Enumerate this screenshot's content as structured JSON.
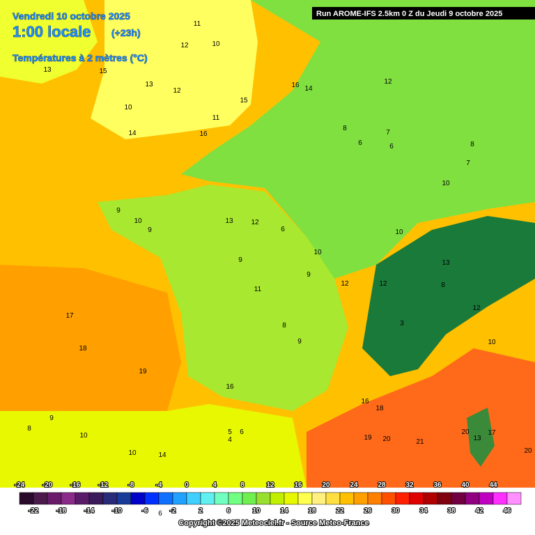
{
  "header": {
    "date": "Vendredi 10 octobre 2025",
    "time": "1:00 locale",
    "lead": "(+23h)",
    "field": "Températures à 2 mètres (°C)",
    "run": "Run AROME-IFS 2.5km 0 Z du Jeudi 9 octobre 2025"
  },
  "contour_labels": [
    "11",
    "10",
    "12",
    "13",
    "15",
    "13",
    "12",
    "10",
    "14",
    "15",
    "11",
    "16",
    "14",
    "16",
    "12",
    "8",
    "6",
    "7",
    "6",
    "8",
    "7",
    "10",
    "9",
    "10",
    "9",
    "13",
    "12",
    "6",
    "10",
    "10",
    "9",
    "12",
    "11",
    "17",
    "18",
    "19",
    "9",
    "8",
    "9",
    "16",
    "12",
    "13",
    "3",
    "8",
    "12",
    "10",
    "16",
    "18",
    "19",
    "20",
    "21",
    "20",
    "13",
    "17",
    "5",
    "6",
    "4",
    "10",
    "9",
    "10",
    "6",
    "8",
    "14",
    "20"
  ],
  "legend": {
    "colors": [
      "#2a0a2a",
      "#4b1a4b",
      "#6a1a6a",
      "#8a2a8a",
      "#5a1a6a",
      "#3a1a5a",
      "#2a2a7a",
      "#1a3a9a",
      "#0000c8",
      "#0030ff",
      "#1070ff",
      "#20a0ff",
      "#40d0ff",
      "#60f0f0",
      "#70ffc0",
      "#70ff80",
      "#70f050",
      "#98e030",
      "#c0f000",
      "#e8f800",
      "#ffff50",
      "#fff080",
      "#ffe040",
      "#ffc000",
      "#ffa000",
      "#ff8000",
      "#ff5000",
      "#ff2000",
      "#e00000",
      "#b00000",
      "#800010",
      "#700040",
      "#900080",
      "#c000c0",
      "#ff30ff",
      "#ff90ff"
    ],
    "labels_top": [
      -24,
      -20,
      -16,
      -12,
      -8,
      -4,
      0,
      4,
      8,
      12,
      16,
      20,
      24,
      28,
      32,
      36,
      40,
      44
    ],
    "labels_bottom": [
      -22,
      -18,
      -14,
      -10,
      -6,
      -2,
      2,
      6,
      10,
      14,
      18,
      22,
      26,
      30,
      34,
      38,
      42,
      46
    ]
  },
  "copyright": "Copyright ©2025 Meteociel.fr - Source Meteo-France"
}
